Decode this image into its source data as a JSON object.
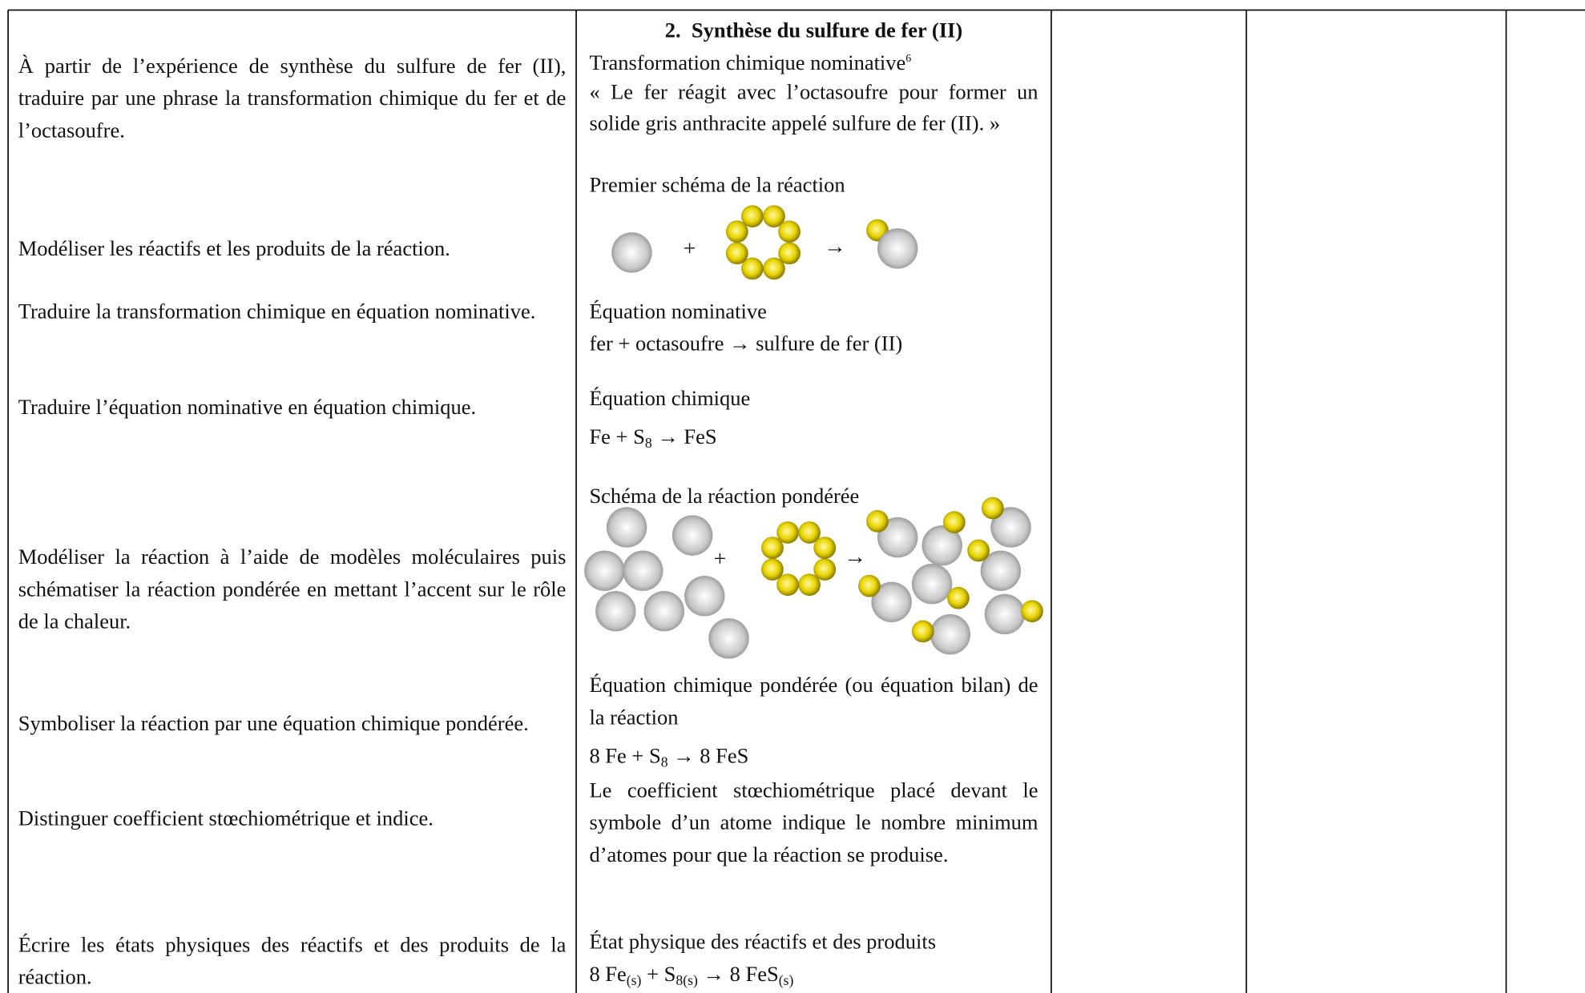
{
  "objectives": [
    "À partir de l’expérience de synthèse du sulfure de fer (II), traduire par une phrase la transformation chimique du fer et de l’octasoufre.",
    "Modéliser les réactifs et les produits de la réaction.",
    "Traduire la transformation chimique en équation nominative.",
    "Traduire l’équation nominative en équation chimique.",
    "Modéliser la réaction à l’aide de modèles moléculaires puis schématiser la réaction pondérée en mettant l’accent sur le rôle de la chaleur.",
    "Symboliser la réaction par une équation chimique pondérée.",
    "Distinguer coefficient stœchiométrique et indice.",
    "Écrire les états physiques des réactifs et des produits de la réaction."
  ],
  "content": {
    "heading_number": "2.",
    "heading": "Synthèse du sulfure de fer (II)",
    "nominative_title": "Transformation chimique nominative",
    "footnote": "6",
    "quote": "« Le fer réagit avec l’octasoufre pour former un solide gris anthracite appelé sulfure de fer (II). »",
    "scheme1_title": "Premier schéma de la réaction",
    "scheme1_plus": "+",
    "scheme1_arrow": "→",
    "eq_nom_title": "Équation nominative",
    "eq_nom": "fer + octasoufre → sulfure de fer (II)",
    "eq_chem_title": "Équation chimique",
    "eq_chem": [
      "Fe +  S",
      "8",
      " → FeS"
    ],
    "scheme2_title": "Schéma de la réaction pondérée",
    "scheme2_plus": "+",
    "scheme2_arrow": "→",
    "eq_bal_title": "Équation chimique pondérée (ou équation bilan) de la réaction",
    "eq_bal": [
      "8 Fe +  S",
      "8",
      " → 8 FeS"
    ],
    "coef_text": "Le coefficient stœchiométrique placé devant le symbole d’un atome indique le nombre minimum d’atomes pour que la réaction se produise.",
    "state_title": "État physique des réactifs et des produits",
    "eq_state": [
      "8 Fe",
      "(s)",
      " + S",
      "8(s)",
      " → 8 FeS",
      "(s)"
    ]
  }
}
